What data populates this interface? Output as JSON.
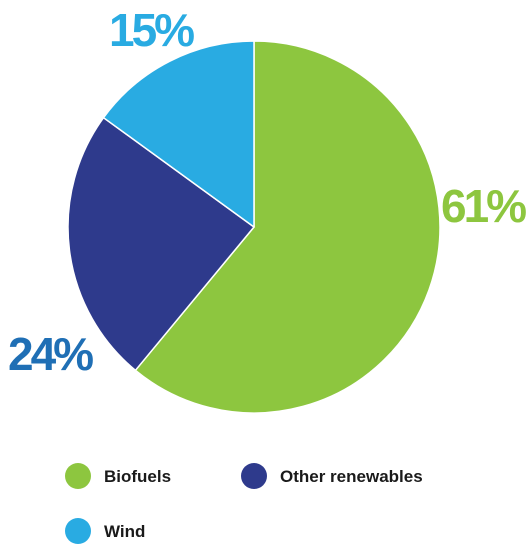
{
  "chart_data": {
    "type": "pie",
    "title": "",
    "slices": [
      {
        "name": "Biofuels",
        "value": 61,
        "label": "61%",
        "color": "#8dc63f",
        "label_color": "#8dc63f"
      },
      {
        "name": "Other renewables",
        "value": 24,
        "label": "24%",
        "color": "#2e3a8c",
        "label_color": "#1f6fb5"
      },
      {
        "name": "Wind",
        "value": 15,
        "label": "15%",
        "color": "#29abe2",
        "label_color": "#29abe2"
      }
    ],
    "start_angle": "top (12 o'clock), clockwise",
    "legend_position": "bottom"
  }
}
